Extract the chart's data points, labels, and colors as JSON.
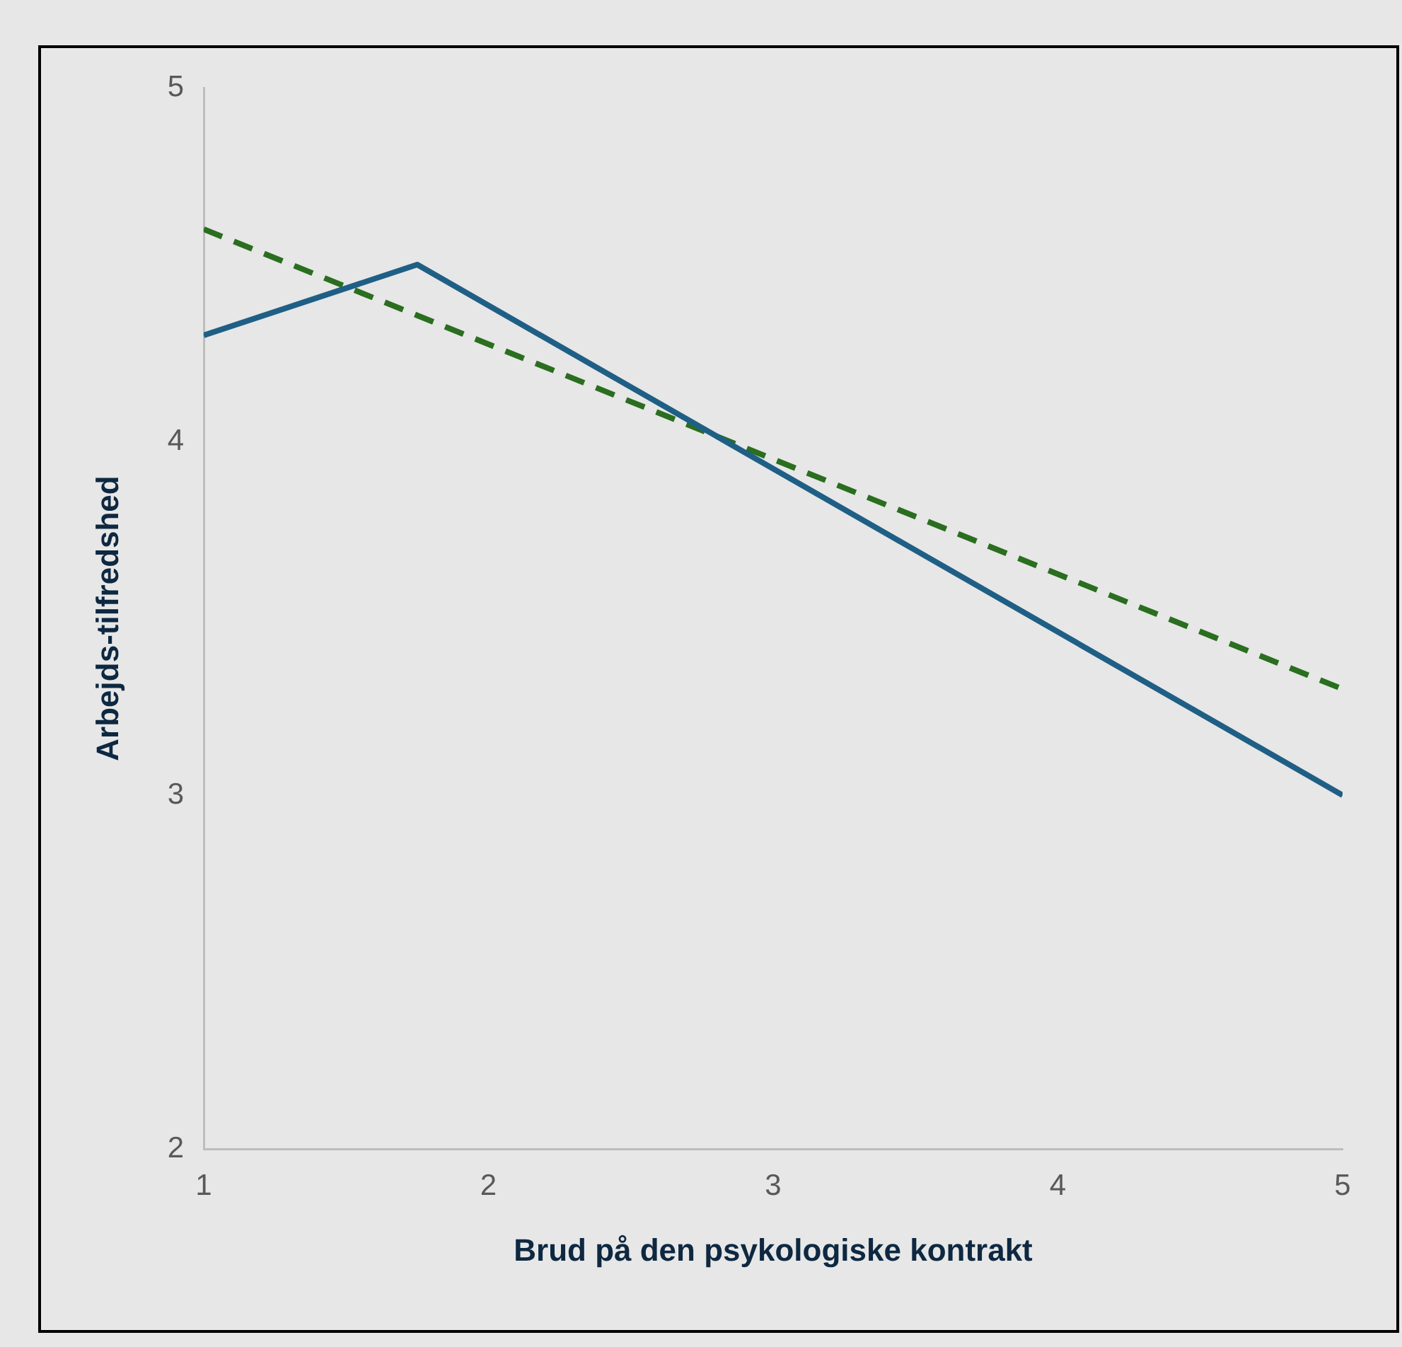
{
  "chart_data": {
    "type": "line",
    "xlabel": "Brud på den psykologiske kontrakt",
    "ylabel": "Arbejds-tilfredshed",
    "xlim": [
      1,
      5
    ],
    "ylim": [
      2,
      5
    ],
    "xticks": [
      1,
      2,
      3,
      4,
      5
    ],
    "yticks": [
      2,
      3,
      4,
      5
    ],
    "grid": false,
    "legend": false,
    "marker": "none",
    "series": [
      {
        "color": "#1f5f85",
        "line_style": "solid",
        "x": [
          1,
          1.75,
          5
        ],
        "values": [
          4.3,
          4.5,
          3.0
        ]
      },
      {
        "color": "#2a6e1f",
        "line_style": "dashed",
        "x": [
          1,
          5
        ],
        "values": [
          4.6,
          3.3
        ]
      }
    ]
  }
}
